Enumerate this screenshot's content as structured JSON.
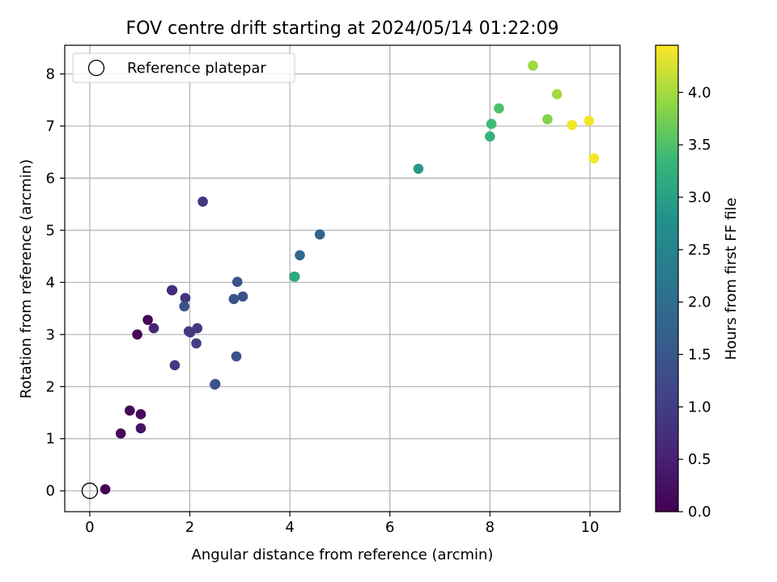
{
  "chart_data": {
    "type": "scatter",
    "title": "FOV centre drift starting at 2024/05/14 01:22:09",
    "xlabel": "Angular distance from reference (arcmin)",
    "ylabel": "Rotation from reference (arcmin)",
    "colorbar_label": "Hours from first FF file",
    "colormap": "viridis",
    "xlim": [
      -0.5,
      10.6
    ],
    "ylim": [
      -0.4,
      8.55
    ],
    "clim": [
      0.0,
      4.45
    ],
    "xticks": [
      0,
      2,
      4,
      6,
      8,
      10
    ],
    "yticks": [
      0,
      1,
      2,
      3,
      4,
      5,
      6,
      7,
      8
    ],
    "cticks": [
      0.0,
      0.5,
      1.0,
      1.5,
      2.0,
      2.5,
      3.0,
      3.5,
      4.0
    ],
    "grid": true,
    "legend": {
      "position": "top-left",
      "entries": [
        "Reference platepar"
      ]
    },
    "reference_point": {
      "x": 0,
      "y": 0
    },
    "points": [
      {
        "x": 0.31,
        "y": 0.03,
        "h": 0.05
      },
      {
        "x": 0.62,
        "y": 1.1,
        "h": 0.15
      },
      {
        "x": 0.8,
        "y": 1.54,
        "h": 0.1
      },
      {
        "x": 1.02,
        "y": 1.47,
        "h": 0.1
      },
      {
        "x": 1.02,
        "y": 1.2,
        "h": 0.3
      },
      {
        "x": 0.95,
        "y": 3.0,
        "h": 0.05
      },
      {
        "x": 1.16,
        "y": 3.28,
        "h": 0.1
      },
      {
        "x": 1.28,
        "y": 3.12,
        "h": 0.6
      },
      {
        "x": 1.64,
        "y": 3.85,
        "h": 0.65
      },
      {
        "x": 1.65,
        "y": 3.85,
        "h": 0.7
      },
      {
        "x": 1.7,
        "y": 2.41,
        "h": 0.9
      },
      {
        "x": 1.91,
        "y": 3.7,
        "h": 0.85
      },
      {
        "x": 1.89,
        "y": 3.54,
        "h": 1.4
      },
      {
        "x": 1.98,
        "y": 3.06,
        "h": 1.0
      },
      {
        "x": 2.01,
        "y": 3.04,
        "h": 0.95
      },
      {
        "x": 2.15,
        "y": 3.12,
        "h": 0.9
      },
      {
        "x": 2.13,
        "y": 2.83,
        "h": 1.0
      },
      {
        "x": 2.26,
        "y": 5.55,
        "h": 0.85
      },
      {
        "x": 2.51,
        "y": 2.05,
        "h": 1.35
      },
      {
        "x": 2.5,
        "y": 2.04,
        "h": 1.4
      },
      {
        "x": 2.88,
        "y": 3.68,
        "h": 1.4
      },
      {
        "x": 2.95,
        "y": 4.01,
        "h": 1.45
      },
      {
        "x": 3.06,
        "y": 3.73,
        "h": 1.35
      },
      {
        "x": 2.93,
        "y": 2.58,
        "h": 1.45
      },
      {
        "x": 4.09,
        "y": 4.11,
        "h": 2.0
      },
      {
        "x": 4.1,
        "y": 4.11,
        "h": 3.15
      },
      {
        "x": 4.2,
        "y": 4.52,
        "h": 1.9
      },
      {
        "x": 4.6,
        "y": 4.92,
        "h": 1.8
      },
      {
        "x": 6.57,
        "y": 6.18,
        "h": 2.9
      },
      {
        "x": 8.0,
        "y": 6.8,
        "h": 3.3
      },
      {
        "x": 8.03,
        "y": 7.04,
        "h": 3.4
      },
      {
        "x": 8.18,
        "y": 7.34,
        "h": 3.5
      },
      {
        "x": 8.86,
        "y": 8.16,
        "h": 3.95
      },
      {
        "x": 9.15,
        "y": 7.13,
        "h": 3.8
      },
      {
        "x": 9.34,
        "y": 7.61,
        "h": 4.0
      },
      {
        "x": 9.64,
        "y": 7.02,
        "h": 4.4
      },
      {
        "x": 9.98,
        "y": 7.1,
        "h": 4.4
      },
      {
        "x": 10.08,
        "y": 6.38,
        "h": 4.4
      }
    ]
  }
}
